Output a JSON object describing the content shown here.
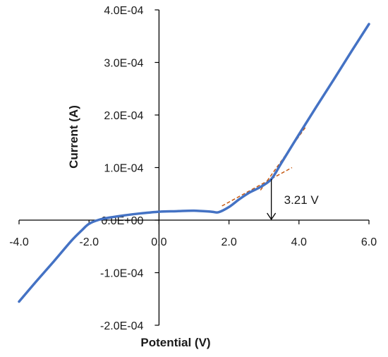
{
  "chart_data": {
    "type": "line",
    "xlabel": "Potential (V)",
    "ylabel": "Current (A)",
    "xlim": [
      -4.0,
      6.0
    ],
    "ylim": [
      -0.0002,
      0.0004
    ],
    "x_ticks": [
      -4.0,
      -2.0,
      0.0,
      2.0,
      4.0,
      6.0
    ],
    "x_tick_labels": [
      "-4.0",
      "-2.0",
      "0.0",
      "2.0",
      "4.0",
      "6.0"
    ],
    "y_ticks": [
      -0.0002,
      -0.0001,
      0.0,
      0.0001,
      0.0002,
      0.0003,
      0.0004
    ],
    "y_tick_labels": [
      "-2.0E-04",
      "-1.0E-04",
      "0.0E+00",
      "1.0E-04",
      "2.0E-04",
      "3.0E-04",
      "4.0E-04"
    ],
    "grid": false,
    "series": [
      {
        "color": "#4472c4",
        "x": [
          -4.0,
          -3.5,
          -3.0,
          -2.5,
          -2.2,
          -2.0,
          -1.7,
          -1.4,
          -1.0,
          -0.5,
          0.0,
          0.5,
          1.0,
          1.5,
          1.7,
          2.0,
          2.3,
          2.6,
          2.9,
          3.21,
          3.5,
          4.0,
          4.5,
          5.0,
          5.5,
          6.0
        ],
        "y": [
          -0.000155,
          -0.000116,
          -7.8e-05,
          -3.9e-05,
          -1.9e-05,
          -7e-06,
          1e-06,
          5e-06,
          9e-06,
          1.3e-05,
          1.6e-05,
          1.7e-05,
          1.8e-05,
          1.6e-05,
          1.5e-05,
          2.5e-05,
          4e-05,
          5.3e-05,
          6.3e-05,
          7.8e-05,
          0.000109,
          0.000163,
          0.000216,
          0.000268,
          0.000321,
          0.000373
        ]
      }
    ],
    "tangent_lines": [
      {
        "color": "#c65911",
        "x": [
          1.8,
          3.8
        ],
        "y": [
          2.7e-05,
          0.0001
        ]
      },
      {
        "color": "#c65911",
        "x": [
          2.9,
          4.2
        ],
        "y": [
          5.7e-05,
          0.000178
        ]
      }
    ],
    "annotation": {
      "text": "3.21 V",
      "x": 3.21
    }
  }
}
